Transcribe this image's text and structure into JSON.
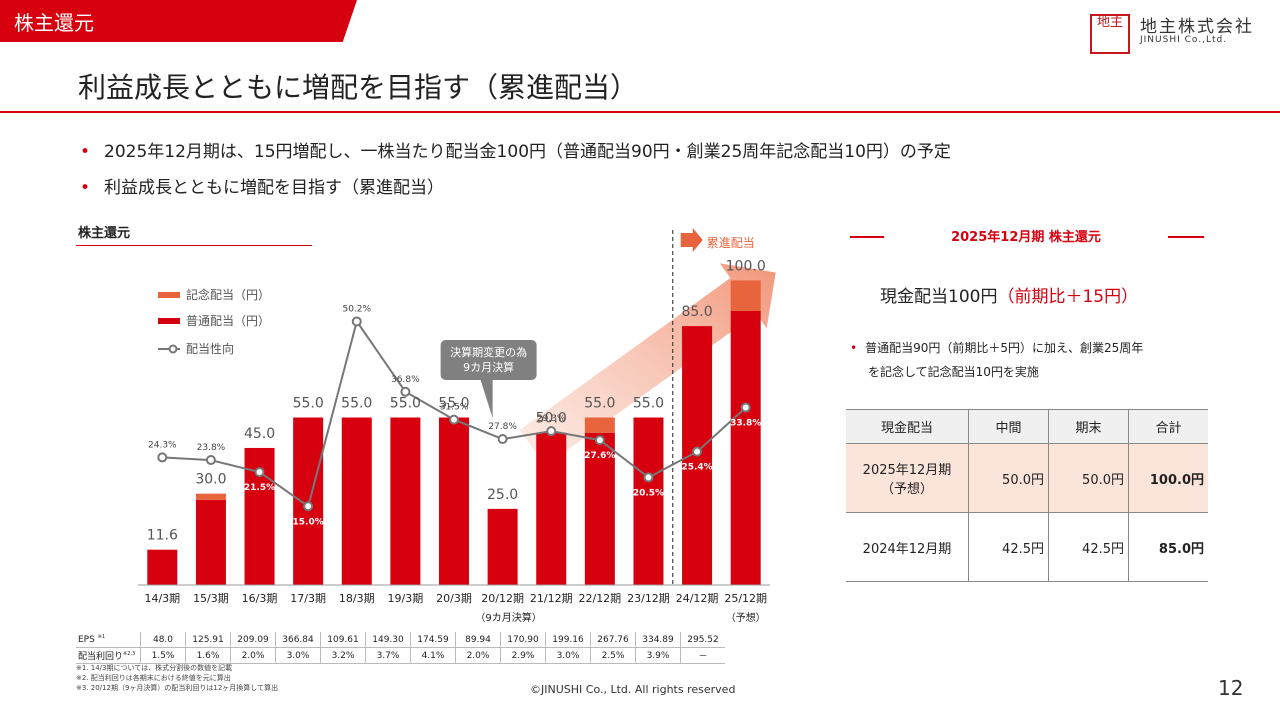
{
  "header": {
    "section_tag": "株主還元",
    "logo_mark": "地主",
    "logo_name_jp": "地主株式会社",
    "logo_name_en": "JINUSHI Co.,Ltd.",
    "brand_color": "#d7000f"
  },
  "page": {
    "title": "利益成長とともに増配を目指す（累進配当）",
    "bullets": [
      "2025年12月期は、15円増配し、一株当たり配当金100円（普通配当90円・創業25周年記念配当10円）の予定",
      "利益成長とともに増配を目指す（累進配当）"
    ],
    "copyright": "©JINUSHI Co., Ltd. All rights reserved",
    "page_number": "12"
  },
  "chart_section": {
    "heading": "株主還元",
    "callout": "決算期変更の為\n9カ月決算",
    "progressive_label": "累進配当",
    "sub_labels": [
      "（9カ月決算）",
      "（予想）"
    ]
  },
  "chart_data": {
    "type": "bar",
    "title": "株主還元",
    "categories": [
      "14/3期",
      "15/3期",
      "16/3期",
      "17/3期",
      "18/3期",
      "19/3期",
      "20/3期",
      "20/12期",
      "21/12期",
      "22/12期",
      "23/12期",
      "24/12期",
      "25/12期"
    ],
    "series": [
      {
        "name": "普通配当（円）",
        "type": "bar",
        "color": "#d7000f",
        "values": [
          11.6,
          28.0,
          45.0,
          55.0,
          55.0,
          55.0,
          55.0,
          25.0,
          50.0,
          50.0,
          55.0,
          85.0,
          90.0
        ]
      },
      {
        "name": "記念配当（円）",
        "type": "bar",
        "color": "#e8643c",
        "values": [
          0,
          2.0,
          0,
          0,
          0,
          0,
          0,
          0,
          0,
          5.0,
          0,
          0,
          10.0
        ]
      },
      {
        "name": "配当性向",
        "type": "line",
        "color": "#777777",
        "unit": "%",
        "values": [
          24.3,
          23.8,
          21.5,
          15.0,
          50.2,
          36.8,
          31.5,
          27.8,
          29.3,
          27.6,
          20.5,
          25.4,
          33.8
        ]
      }
    ],
    "total_labels": [
      "11.6",
      "30.0",
      "45.0",
      "55.0",
      "55.0",
      "55.0",
      "55.0",
      "25.0",
      "50.0",
      "55.0",
      "55.0",
      "85.0",
      "100.0"
    ],
    "payout_labels": [
      "24.3%",
      "23.8%",
      "21.5%",
      "15.0%",
      "50.2%",
      "36.8%",
      "31.5%",
      "27.8%",
      "29.3%",
      "27.6%",
      "20.5%",
      "25.4%",
      "33.8%"
    ],
    "ylim_left": [
      0,
      110
    ],
    "ylim_right": [
      0,
      60
    ],
    "legend_position": "top-left"
  },
  "eps_table": {
    "eps_label": "EPS",
    "eps_sup": "※1",
    "yield_label": "配当利回り",
    "yield_sup": "※2,3",
    "eps_values": [
      "48.0",
      "125.91",
      "209.09",
      "366.84",
      "109.61",
      "149.30",
      "174.59",
      "89.94",
      "170.90",
      "199.16",
      "267.76",
      "334.89",
      "295.52"
    ],
    "yield_values": [
      "1.5%",
      "1.6%",
      "2.0%",
      "3.0%",
      "3.2%",
      "3.7%",
      "4.1%",
      "2.0%",
      "2.9%",
      "3.0%",
      "2.5%",
      "3.9%",
      "－"
    ],
    "notes": [
      "※1. 14/3期については、株式分割後の数値を記載",
      "※2. 配当利回りは各期末における終値を元に算出",
      "※3. 20/12期（9ヶ月決算）の配当利回りは12ヶ月換算して算出"
    ]
  },
  "right_panel": {
    "title": "2025年12月期 株主還元",
    "main_text": "現金配当100円",
    "main_delta": "（前期比＋15円）",
    "note_line1": "普通配当90円（前期比＋5円）に加え、創業25周年",
    "note_line2": "を記念して記念配当10円を実施",
    "table": {
      "headers": [
        "現金配当",
        "中間",
        "期末",
        "合計"
      ],
      "rows": [
        {
          "period": "2025年12月期",
          "sub": "（予想）",
          "interim": "50.0円",
          "year_end": "50.0円",
          "total": "100.0円"
        },
        {
          "period": "2024年12月期",
          "sub": "",
          "interim": "42.5円",
          "year_end": "42.5円",
          "total": "85.0円"
        }
      ]
    }
  }
}
